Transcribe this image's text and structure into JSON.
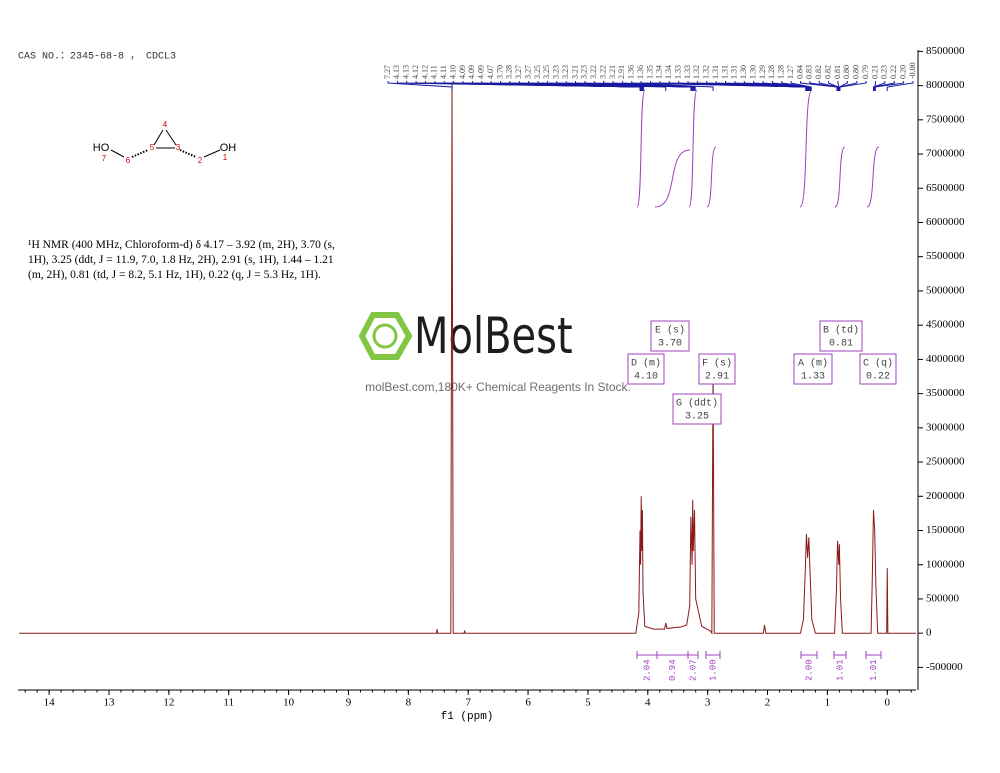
{
  "header": "CAS NO.：2345-68-8 ， CDCL3",
  "molecule": {
    "atoms": [
      "HO",
      "7",
      "6",
      "5",
      "4",
      "3",
      "2",
      "OH",
      "1"
    ]
  },
  "description": "¹H NMR (400 MHz, Chloroform-d) δ 4.17 – 3.92 (m, 2H), 3.70 (s, 1H), 3.25 (ddt, J = 11.9, 7.0, 1.8 Hz, 2H), 2.91 (s, 1H), 1.44 – 1.21 (m, 2H), 0.81 (td, J = 8.2, 5.1 Hz, 1H), 0.22 (q, J = 5.3 Hz, 1H).",
  "watermark": {
    "brand": "MolBest",
    "tagline": "molBest.com,180K+ Chemical Reagents In Stock."
  },
  "chart_data": {
    "type": "line",
    "x_label": "f1 (ppm)",
    "xlim": [
      14.52,
      -0.48
    ],
    "xticks": [
      14,
      13,
      12,
      11,
      10,
      9,
      8,
      7,
      6,
      5,
      4,
      3,
      2,
      1,
      0
    ],
    "ylim": [
      -830000,
      8520000
    ],
    "yticks": [
      -500000,
      0,
      500000,
      1000000,
      1500000,
      2000000,
      2500000,
      3000000,
      3500000,
      4000000,
      4500000,
      5000000,
      5500000,
      6000000,
      6500000,
      7000000,
      7500000,
      8000000,
      8500000
    ],
    "color": "#8b1a1a",
    "x": [
      14.5,
      7.6,
      7.53,
      7.52,
      7.51,
      7.29,
      7.27,
      7.25,
      7.07,
      7.06,
      7.05,
      4.2,
      4.15,
      4.13,
      4.12,
      4.11,
      4.1,
      4.09,
      4.08,
      4.05,
      3.9,
      3.72,
      3.7,
      3.68,
      3.45,
      3.35,
      3.3,
      3.28,
      3.26,
      3.25,
      3.24,
      3.22,
      3.2,
      3.1,
      2.95,
      2.93,
      2.91,
      2.89,
      2.07,
      2.05,
      2.03,
      1.45,
      1.4,
      1.37,
      1.35,
      1.33,
      1.31,
      1.29,
      1.26,
      1.2,
      0.88,
      0.85,
      0.83,
      0.81,
      0.8,
      0.78,
      0.75,
      0.27,
      0.25,
      0.23,
      0.21,
      0.19,
      0.16,
      0.01,
      0.0,
      -0.01,
      -0.48
    ],
    "values": [
      0,
      0,
      0,
      60000,
      0,
      0,
      8050000,
      0,
      0,
      40000,
      0,
      0,
      300000,
      1500000,
      1000000,
      2000000,
      1200000,
      1800000,
      600000,
      100000,
      60000,
      60000,
      150000,
      70000,
      90000,
      120000,
      400000,
      1700000,
      1000000,
      1950000,
      1200000,
      1800000,
      500000,
      100000,
      30000,
      0,
      3950000,
      0,
      0,
      120000,
      0,
      0,
      200000,
      900000,
      1450000,
      1100000,
      1400000,
      900000,
      200000,
      0,
      0,
      600000,
      1350000,
      1000000,
      1300000,
      500000,
      0,
      0,
      800000,
      1800000,
      1500000,
      700000,
      0,
      0,
      950000,
      0,
      0
    ],
    "peak_labels": [
      "7.27",
      "4.13",
      "4.13",
      "4.12",
      "4.12",
      "4.11",
      "4.11",
      "4.10",
      "4.09",
      "4.09",
      "4.09",
      "4.07",
      "3.70",
      "3.28",
      "3.27",
      "3.27",
      "3.25",
      "3.25",
      "3.23",
      "3.23",
      "3.21",
      "3.23",
      "3.22",
      "3.22",
      "3.21",
      "2.91",
      "1.36",
      "1.36",
      "1.35",
      "1.34",
      "1.34",
      "1.33",
      "1.33",
      "1.32",
      "1.32",
      "1.31",
      "1.31",
      "1.31",
      "1.30",
      "1.30",
      "1.29",
      "1.28",
      "1.28",
      "1.27",
      "0.84",
      "0.83",
      "0.82",
      "0.82",
      "0.81",
      "0.80",
      "0.80",
      "0.79",
      "0.21",
      "0.23",
      "0.22",
      "0.20",
      "-0.00"
    ],
    "multiplets": [
      {
        "name": "D (m)",
        "shift": "4.10"
      },
      {
        "name": "E (s)",
        "shift": "3.70"
      },
      {
        "name": "F (s)",
        "shift": "2.91"
      },
      {
        "name": "G (ddt)",
        "shift": "3.25"
      },
      {
        "name": "A (m)",
        "shift": "1.33"
      },
      {
        "name": "B (td)",
        "shift": "0.81"
      },
      {
        "name": "C (q)",
        "shift": "0.22"
      }
    ],
    "integrations": [
      "2.04",
      "0.94",
      "2.07",
      "1.00",
      "2.00",
      "1.01",
      "1.01"
    ]
  }
}
